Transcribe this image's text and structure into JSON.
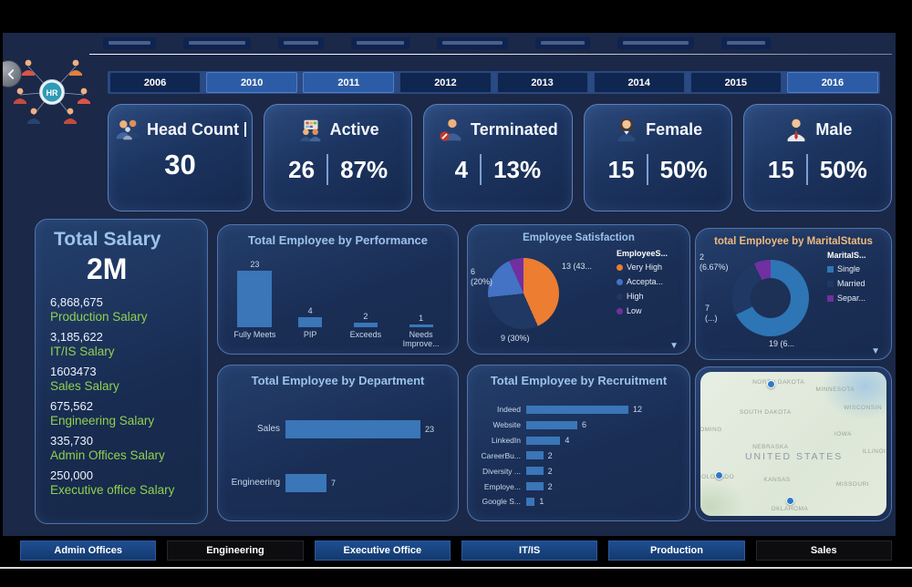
{
  "app": {
    "logo_text": "HR"
  },
  "chart_controls": {
    "chevron": "▼"
  },
  "colors": {
    "dashboard_bg": "#1b2847",
    "card_border": "#4f76ae",
    "accent_bar_blue": "#3a76b8",
    "title_blue": "#9cc2ea",
    "salary_green": "#8fd14f",
    "marital_title_orange": "#efb97f"
  },
  "year_filter": {
    "items": [
      {
        "label": "2006",
        "selected": false
      },
      {
        "label": "2010",
        "selected": true
      },
      {
        "label": "2011",
        "selected": true
      },
      {
        "label": "2012",
        "selected": false
      },
      {
        "label": "2013",
        "selected": false
      },
      {
        "label": "2014",
        "selected": false
      },
      {
        "label": "2015",
        "selected": false
      },
      {
        "label": "2016",
        "selected": true
      }
    ]
  },
  "kpi_cards": [
    {
      "icon": "people-group-icon",
      "title": "Head Count",
      "value": "30",
      "pct": null
    },
    {
      "icon": "active-employees-icon",
      "title": "Active",
      "value": "26",
      "pct": "87%"
    },
    {
      "icon": "terminated-employee-icon",
      "title": "Terminated",
      "value": "4",
      "pct": "13%"
    },
    {
      "icon": "female-employee-icon",
      "title": "Female",
      "value": "15",
      "pct": "50%"
    },
    {
      "icon": "male-employee-icon",
      "title": "Male",
      "value": "15",
      "pct": "50%"
    }
  ],
  "salary_panel": {
    "title": "Total Salary",
    "total": "2M",
    "items": [
      {
        "value": "6,868,675",
        "label": "Production Salary"
      },
      {
        "value": "3,185,622",
        "label": "IT/IS Salary"
      },
      {
        "value": "1603473",
        "label": "Sales Salary"
      },
      {
        "value": "675,562",
        "label": "Engineering Salary"
      },
      {
        "value": "335,730",
        "label": "Admin Offices Salary"
      },
      {
        "value": "250,000",
        "label": "Executive office Salary"
      }
    ]
  },
  "chart_data": [
    {
      "type": "bar",
      "orientation": "vertical",
      "title": "Total Employee by Performance",
      "categories": [
        "Fully Meets",
        "PIP",
        "Exceeds",
        "Needs Improve..."
      ],
      "values": [
        23,
        4,
        2,
        1
      ],
      "bar_color": "#3a76b8",
      "ylim": [
        0,
        23
      ],
      "grid": false
    },
    {
      "type": "pie",
      "title": "Employee Satisfaction",
      "legend_title": "EmployeeS...",
      "legend_position": "right",
      "slices": [
        {
          "label": "Very High",
          "value": 13,
          "color": "#ed7d31",
          "data_label": "13 (43..."
        },
        {
          "label": "High",
          "value": 9,
          "color": "#1f3864",
          "data_label": "9 (30%)"
        },
        {
          "label": "Accepta...",
          "value": 6,
          "color": "#4472c4",
          "data_label": "6\n(20%)"
        },
        {
          "label": "Low",
          "value": 2,
          "color": "#7030a0",
          "data_label": null
        }
      ],
      "legend_order": [
        0,
        2,
        1,
        3
      ]
    },
    {
      "type": "pie",
      "donut": true,
      "title": "total Employee by MaritalStatus",
      "legend_title": "MaritalS...",
      "legend_position": "right",
      "slices": [
        {
          "label": "Single",
          "value": 19,
          "color": "#2e75b6",
          "data_label": "19 (6..."
        },
        {
          "label": "Married",
          "value": 7,
          "color": "#1f3864",
          "data_label": "7\n(...)"
        },
        {
          "label": "Separ...",
          "value": 2,
          "color": "#7030a0",
          "data_label": "2\n(6.67%)"
        }
      ],
      "legend_order": [
        0,
        1,
        2
      ]
    },
    {
      "type": "bar",
      "orientation": "horizontal",
      "title": "Total Employee by Department",
      "categories": [
        "Sales",
        "Engineering"
      ],
      "values": [
        23,
        7
      ],
      "bar_color": "#3a76b8",
      "xlim": [
        0,
        23
      ]
    },
    {
      "type": "bar",
      "orientation": "horizontal",
      "title": "Total Employee by Recruitment",
      "categories": [
        "Indeed",
        "Website",
        "LinkedIn",
        "CareerBu...",
        "Diversity ...",
        "Employe...",
        "Google S..."
      ],
      "values": [
        12,
        6,
        4,
        2,
        2,
        2,
        1
      ],
      "bar_color": "#3a76b8",
      "xlim": [
        0,
        12
      ]
    }
  ],
  "map": {
    "region_label": "UNITED STATES",
    "state_labels": [
      "NORTH DAKOTA",
      "MINNESOTA",
      "SOUTH DAKOTA",
      "WISCONSIN",
      "WYOMING",
      "IOWA",
      "NEBRASKA",
      "ILLINOIS",
      "COLORADO",
      "KANSAS",
      "MISSOURI",
      "OKLAHOMA"
    ],
    "markers": 3
  },
  "department_filter": [
    {
      "label": "Admin Offices",
      "dark": false
    },
    {
      "label": "Engineering",
      "dark": true
    },
    {
      "label": "Executive Office",
      "dark": false
    },
    {
      "label": "IT/IS",
      "dark": false
    },
    {
      "label": "Production",
      "dark": false
    },
    {
      "label": "Sales",
      "dark": true
    }
  ]
}
